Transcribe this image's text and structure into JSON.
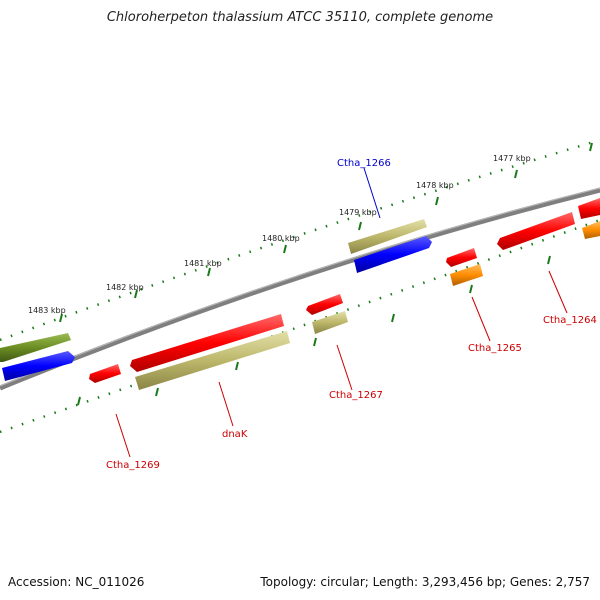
{
  "title": "Chloroherpeton thalassium ATCC 35110, complete genome",
  "footer": {
    "accession": "Accession: NC_011026",
    "stats": "Topology: circular; Length: 3,293,456 bp; Genes: 2,757"
  },
  "scale_labels": [
    "1477 kbp",
    "1478 kbp",
    "1479 kbp",
    "1480 kbp",
    "1481 kbp",
    "1482 kbp",
    "1483 kbp"
  ],
  "gene_labels": [
    "Ctha_1266",
    "Ctha_1264",
    "Ctha_1265",
    "Ctha_1267",
    "dnaK",
    "Ctha_1269"
  ],
  "colors": {
    "backbone": "#7f7f7f",
    "tick": "#1a7a1a",
    "red": "#ff0000",
    "blue": "#0000ff",
    "olive": "#6b8e23",
    "khaki": "#bdb76b",
    "orange": "#ff8c00",
    "label_blue": "#0000cc",
    "label_red": "#cc0000"
  }
}
